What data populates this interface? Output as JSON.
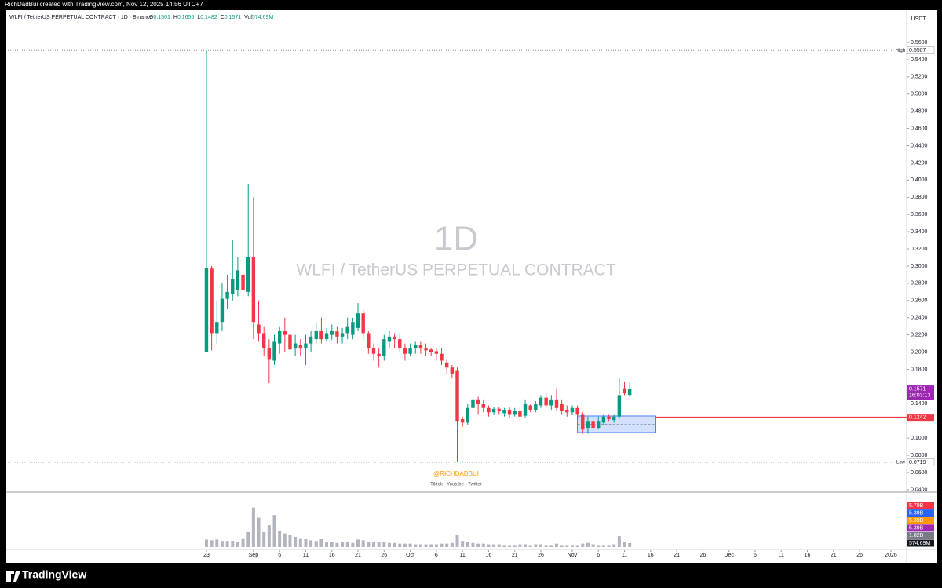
{
  "header": {
    "credit": "RichDadBui created with TradingView.com, Nov 12, 2025 14:56 UTC+7",
    "symbol": "WLFI / TetherUS PERPETUAL CONTRACT · 1D · Binance",
    "ohlc": [
      {
        "key": "O",
        "text": "0.1501"
      },
      {
        "key": "H",
        "text": "0.1655"
      },
      {
        "key": "L",
        "text": "0.1482"
      },
      {
        "key": "C",
        "text": "0.1571"
      },
      {
        "key": "Vol",
        "text": "574.69M"
      }
    ],
    "currency": "USDT"
  },
  "watermark": {
    "interval": "1D",
    "symbol": "WLFI / TetherUS PERPETUAL CONTRACT"
  },
  "signature": {
    "handle": "@RICHDADBUI",
    "socials": "Tiktok - Youtube - Twitter"
  },
  "logo": "TradingView",
  "chart_data": {
    "type": "candlestick",
    "up_color": "#089981",
    "down_color": "#f23645",
    "x": [
      "2025-08-23",
      "2025-08-24",
      "2025-08-25",
      "2025-08-26",
      "2025-08-27",
      "2025-08-28",
      "2025-08-29",
      "2025-08-30",
      "2025-08-31",
      "2025-09-01",
      "2025-09-02",
      "2025-09-03",
      "2025-09-04",
      "2025-09-05",
      "2025-09-06",
      "2025-09-07",
      "2025-09-08",
      "2025-09-09",
      "2025-09-10",
      "2025-09-11",
      "2025-09-12",
      "2025-09-13",
      "2025-09-14",
      "2025-09-15",
      "2025-09-16",
      "2025-09-17",
      "2025-09-18",
      "2025-09-19",
      "2025-09-20",
      "2025-09-21",
      "2025-09-22",
      "2025-09-23",
      "2025-09-24",
      "2025-09-25",
      "2025-09-26",
      "2025-09-27",
      "2025-09-28",
      "2025-09-29",
      "2025-09-30",
      "2025-10-01",
      "2025-10-02",
      "2025-10-03",
      "2025-10-04",
      "2025-10-05",
      "2025-10-06",
      "2025-10-07",
      "2025-10-08",
      "2025-10-09",
      "2025-10-10",
      "2025-10-11",
      "2025-10-12",
      "2025-10-13",
      "2025-10-14",
      "2025-10-15",
      "2025-10-16",
      "2025-10-17",
      "2025-10-18",
      "2025-10-19",
      "2025-10-20",
      "2025-10-21",
      "2025-10-22",
      "2025-10-23",
      "2025-10-24",
      "2025-10-25",
      "2025-10-26",
      "2025-10-27",
      "2025-10-28",
      "2025-10-29",
      "2025-10-30",
      "2025-10-31",
      "2025-11-01",
      "2025-11-02",
      "2025-11-03",
      "2025-11-04",
      "2025-11-05",
      "2025-11-06",
      "2025-11-07",
      "2025-11-08",
      "2025-11-09",
      "2025-11-10",
      "2025-11-11",
      "2025-11-12"
    ],
    "open": [
      0.2,
      0.297,
      0.222,
      0.235,
      0.262,
      0.268,
      0.272,
      0.29,
      0.27,
      0.31,
      0.232,
      0.222,
      0.205,
      0.19,
      0.21,
      0.225,
      0.22,
      0.205,
      0.208,
      0.205,
      0.21,
      0.215,
      0.225,
      0.215,
      0.22,
      0.224,
      0.218,
      0.222,
      0.22,
      0.228,
      0.245,
      0.222,
      0.205,
      0.198,
      0.195,
      0.212,
      0.218,
      0.215,
      0.205,
      0.198,
      0.205,
      0.208,
      0.205,
      0.203,
      0.201,
      0.198,
      0.188,
      0.182,
      0.179,
      0.122,
      0.118,
      0.135,
      0.145,
      0.14,
      0.135,
      0.13,
      0.134,
      0.129,
      0.133,
      0.128,
      0.132,
      0.126,
      0.138,
      0.133,
      0.138,
      0.147,
      0.138,
      0.145,
      0.14,
      0.133,
      0.13,
      0.135,
      0.128,
      0.112,
      0.12,
      0.112,
      0.118,
      0.125,
      0.121,
      0.125,
      0.158,
      0.1501
    ],
    "high": [
      0.5507,
      0.3,
      0.26,
      0.28,
      0.29,
      0.33,
      0.31,
      0.3,
      0.395,
      0.38,
      0.26,
      0.23,
      0.215,
      0.22,
      0.23,
      0.24,
      0.235,
      0.22,
      0.215,
      0.22,
      0.225,
      0.235,
      0.24,
      0.228,
      0.232,
      0.23,
      0.228,
      0.24,
      0.24,
      0.257,
      0.25,
      0.225,
      0.21,
      0.205,
      0.22,
      0.225,
      0.222,
      0.22,
      0.21,
      0.21,
      0.212,
      0.212,
      0.21,
      0.205,
      0.205,
      0.205,
      0.192,
      0.185,
      0.182,
      0.125,
      0.14,
      0.148,
      0.148,
      0.145,
      0.138,
      0.136,
      0.136,
      0.135,
      0.136,
      0.135,
      0.135,
      0.145,
      0.14,
      0.143,
      0.15,
      0.152,
      0.15,
      0.158,
      0.145,
      0.138,
      0.138,
      0.138,
      0.13,
      0.125,
      0.125,
      0.125,
      0.128,
      0.128,
      0.128,
      0.17,
      0.165,
      0.1655
    ],
    "low": [
      0.2,
      0.202,
      0.21,
      0.225,
      0.25,
      0.26,
      0.265,
      0.26,
      0.265,
      0.215,
      0.212,
      0.195,
      0.164,
      0.185,
      0.198,
      0.2,
      0.196,
      0.195,
      0.195,
      0.185,
      0.2,
      0.21,
      0.21,
      0.212,
      0.214,
      0.21,
      0.21,
      0.215,
      0.215,
      0.225,
      0.215,
      0.198,
      0.19,
      0.182,
      0.19,
      0.205,
      0.205,
      0.2,
      0.19,
      0.195,
      0.198,
      0.198,
      0.196,
      0.195,
      0.19,
      0.185,
      0.175,
      0.17,
      0.0719,
      0.113,
      0.115,
      0.13,
      0.128,
      0.13,
      0.125,
      0.127,
      0.128,
      0.125,
      0.124,
      0.125,
      0.12,
      0.124,
      0.13,
      0.13,
      0.135,
      0.135,
      0.133,
      0.132,
      0.128,
      0.125,
      0.127,
      0.122,
      0.105,
      0.105,
      0.108,
      0.11,
      0.115,
      0.12,
      0.118,
      0.122,
      0.15,
      0.1482
    ],
    "close": [
      0.298,
      0.222,
      0.235,
      0.262,
      0.27,
      0.285,
      0.295,
      0.272,
      0.31,
      0.235,
      0.222,
      0.205,
      0.192,
      0.212,
      0.225,
      0.22,
      0.203,
      0.21,
      0.205,
      0.21,
      0.218,
      0.225,
      0.215,
      0.222,
      0.225,
      0.218,
      0.222,
      0.23,
      0.235,
      0.245,
      0.222,
      0.205,
      0.198,
      0.195,
      0.215,
      0.218,
      0.215,
      0.205,
      0.198,
      0.205,
      0.208,
      0.205,
      0.202,
      0.2,
      0.198,
      0.19,
      0.182,
      0.175,
      0.12,
      0.118,
      0.135,
      0.145,
      0.14,
      0.135,
      0.13,
      0.134,
      0.132,
      0.133,
      0.128,
      0.132,
      0.125,
      0.14,
      0.133,
      0.14,
      0.147,
      0.138,
      0.145,
      0.135,
      0.132,
      0.13,
      0.135,
      0.128,
      0.11,
      0.12,
      0.112,
      0.12,
      0.125,
      0.122,
      0.125,
      0.15,
      0.152,
      0.1571
    ],
    "volume": [
      1100000000,
      1000000000,
      1100000000,
      900000000,
      900000000,
      900000000,
      800000000,
      1300000000,
      2200000000,
      5790000000,
      4300000000,
      2200000000,
      3200000000,
      4700000000,
      2300000000,
      2000000000,
      1800000000,
      1500000000,
      1300000000,
      1200000000,
      1000000000,
      900000000,
      1200000000,
      800000000,
      700000000,
      600000000,
      800000000,
      700000000,
      600000000,
      1100000000,
      1000000000,
      800000000,
      700000000,
      700000000,
      800000000,
      600000000,
      600000000,
      500000000,
      500000000,
      500000000,
      400000000,
      400000000,
      400000000,
      400000000,
      400000000,
      500000000,
      500000000,
      600000000,
      1800000000,
      900000000,
      700000000,
      600000000,
      500000000,
      500000000,
      400000000,
      400000000,
      400000000,
      300000000,
      300000000,
      300000000,
      400000000,
      400000000,
      300000000,
      400000000,
      400000000,
      300000000,
      300000000,
      500000000,
      300000000,
      300000000,
      300000000,
      300000000,
      500000000,
      600000000,
      400000000,
      300000000,
      300000000,
      300000000,
      400000000,
      1600000000,
      800000000,
      574690000
    ],
    "volume_color": "#b2b5be",
    "volume_ylim": [
      0,
      7700000000
    ],
    "volume_badges": [
      {
        "label": "5.79B",
        "color": "#f23645"
      },
      {
        "label": "5.39B",
        "color": "#2962ff"
      },
      {
        "label": "5.39B",
        "color": "#ff9800"
      },
      {
        "label": "5.39B",
        "color": "#9c27b0"
      },
      {
        "label": "1.82B",
        "color": "#787b86"
      },
      {
        "label": "574.69M",
        "color": "#131722"
      }
    ],
    "xlim": [
      "2025-07-16",
      "2026-01-04"
    ],
    "xticks": [
      {
        "value": "2025-08-23",
        "label": "23"
      },
      {
        "value": "2025-09-01",
        "label": "Sep"
      },
      {
        "value": "2025-09-06",
        "label": "6"
      },
      {
        "value": "2025-09-11",
        "label": "11"
      },
      {
        "value": "2025-09-16",
        "label": "16"
      },
      {
        "value": "2025-09-21",
        "label": "21"
      },
      {
        "value": "2025-09-26",
        "label": "26"
      },
      {
        "value": "2025-10-01",
        "label": "Oct"
      },
      {
        "value": "2025-10-06",
        "label": "6"
      },
      {
        "value": "2025-10-11",
        "label": "11"
      },
      {
        "value": "2025-10-16",
        "label": "16"
      },
      {
        "value": "2025-10-21",
        "label": "21"
      },
      {
        "value": "2025-10-26",
        "label": "26"
      },
      {
        "value": "2025-11-01",
        "label": "Nov"
      },
      {
        "value": "2025-11-06",
        "label": "6"
      },
      {
        "value": "2025-11-11",
        "label": "11"
      },
      {
        "value": "2025-11-16",
        "label": "16"
      },
      {
        "value": "2025-11-21",
        "label": "21"
      },
      {
        "value": "2025-11-26",
        "label": "26"
      },
      {
        "value": "2025-12-01",
        "label": "Dec"
      },
      {
        "value": "2025-12-06",
        "label": "6"
      },
      {
        "value": "2025-12-11",
        "label": "11"
      },
      {
        "value": "2025-12-16",
        "label": "16"
      },
      {
        "value": "2025-12-21",
        "label": "21"
      },
      {
        "value": "2025-12-26",
        "label": "26"
      },
      {
        "value": "2026-01-01",
        "label": "2026"
      }
    ],
    "ylim": [
      0.039,
      0.5974
    ],
    "yticks": [
      {
        "value": 0.56,
        "label": "0.5600"
      },
      {
        "value": 0.54,
        "label": "0.5400"
      },
      {
        "value": 0.52,
        "label": "0.5200"
      },
      {
        "value": 0.5,
        "label": "0.5000"
      },
      {
        "value": 0.48,
        "label": "0.4800"
      },
      {
        "value": 0.46,
        "label": "0.4600"
      },
      {
        "value": 0.44,
        "label": "0.4400"
      },
      {
        "value": 0.42,
        "label": "0.4200"
      },
      {
        "value": 0.4,
        "label": "0.4000"
      },
      {
        "value": 0.38,
        "label": "0.3800"
      },
      {
        "value": 0.36,
        "label": "0.3600"
      },
      {
        "value": 0.34,
        "label": "0.3400"
      },
      {
        "value": 0.32,
        "label": "0.3200"
      },
      {
        "value": 0.3,
        "label": "0.3000"
      },
      {
        "value": 0.28,
        "label": "0.2800"
      },
      {
        "value": 0.26,
        "label": "0.2600"
      },
      {
        "value": 0.24,
        "label": "0.2400"
      },
      {
        "value": 0.22,
        "label": "0.2200"
      },
      {
        "value": 0.2,
        "label": "0.2000"
      },
      {
        "value": 0.18,
        "label": "0.1800"
      },
      {
        "value": 0.14,
        "label": "0.1400"
      },
      {
        "value": 0.1,
        "label": "0.1000"
      },
      {
        "value": 0.08,
        "label": "0.0800"
      },
      {
        "value": 0.06,
        "label": "0.0600"
      },
      {
        "value": 0.04,
        "label": "0.0400"
      }
    ],
    "price_lines": [
      {
        "label": "High",
        "value": 0.5507,
        "color": "#787b86",
        "badge": "#ffffff"
      },
      {
        "label": "Low",
        "value": 0.0719,
        "color": "#787b86",
        "badge": "#ffffff"
      },
      {
        "value": 0.1571,
        "color": "#9c27b0",
        "badge": "#9c27b0",
        "countdown": "16:03:13"
      },
      {
        "value": 0.1242,
        "color": "#f23645",
        "badge": "#f23645",
        "from": "2025-11-17"
      }
    ],
    "box": {
      "x0": "2025-11-02",
      "x1": "2025-11-17",
      "y0": 0.1065,
      "y1": 0.1257,
      "mid": 0.1157,
      "color": "#2962ff"
    }
  }
}
